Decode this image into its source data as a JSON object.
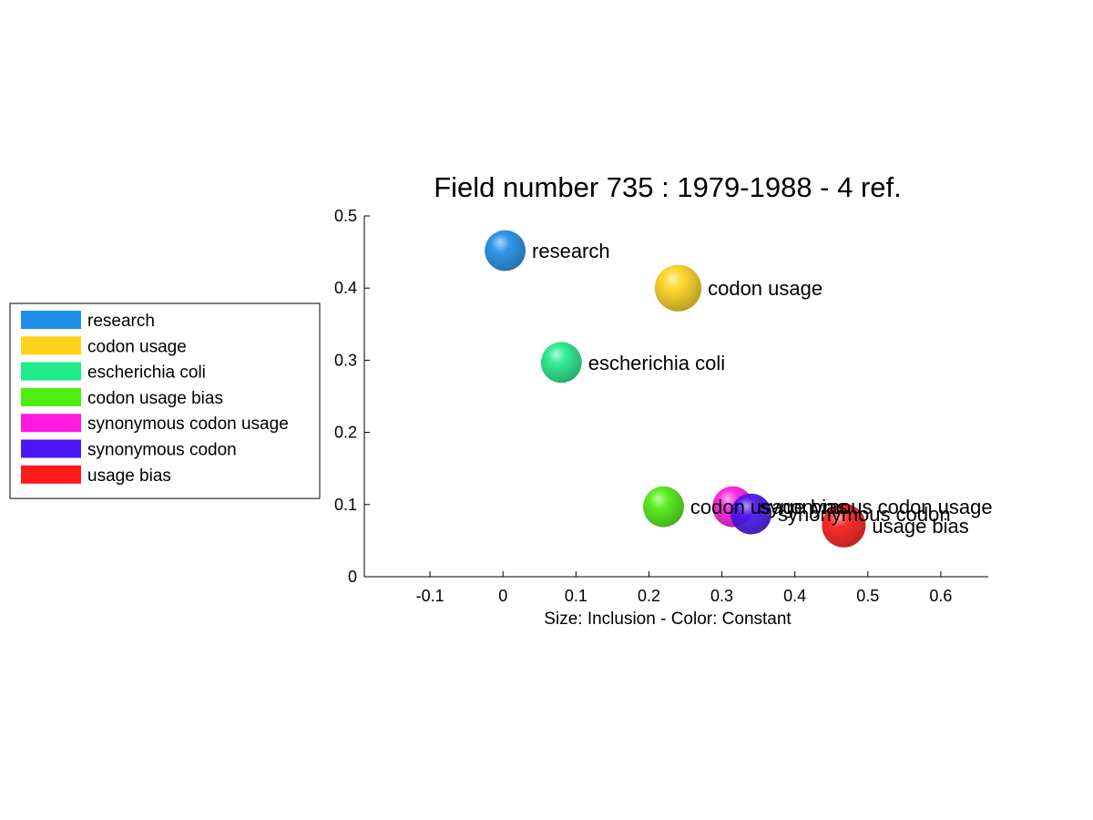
{
  "chart_data": {
    "type": "scatter",
    "title": "Field number 735 : 1979-1988  - 4 ref.",
    "xlabel": "Size: Inclusion - Color: Constant",
    "ylabel": "",
    "xlim": [
      -0.19,
      0.665
    ],
    "ylim": [
      0,
      0.5
    ],
    "xticks": [
      -0.1,
      0,
      0.1,
      0.2,
      0.3,
      0.4,
      0.5,
      0.6
    ],
    "xtick_labels": [
      "-0.1",
      "0",
      "0.1",
      "0.2",
      "0.3",
      "0.4",
      "0.5",
      "0.6"
    ],
    "yticks": [
      0,
      0.1,
      0.2,
      0.3,
      0.4,
      0.5
    ],
    "ytick_labels": [
      "0",
      "0.1",
      "0.2",
      "0.3",
      "0.4",
      "0.5"
    ],
    "grid": false,
    "legend_position": "left",
    "points": [
      {
        "label": "research",
        "x": 0.003,
        "y": 0.452,
        "size": 0.7,
        "color": "#1e8fe8"
      },
      {
        "label": "codon usage",
        "x": 0.24,
        "y": 0.4,
        "size": 0.8,
        "color": "#ffd21a"
      },
      {
        "label": "escherichia coli",
        "x": 0.08,
        "y": 0.297,
        "size": 0.7,
        "color": "#20eb8a"
      },
      {
        "label": "codon usage bias",
        "x": 0.22,
        "y": 0.097,
        "size": 0.7,
        "color": "#4ded10"
      },
      {
        "label": "synonymous codon usage",
        "x": 0.315,
        "y": 0.097,
        "size": 0.7,
        "color": "#ff1ae0"
      },
      {
        "label": "synonymous codon",
        "x": 0.34,
        "y": 0.087,
        "size": 0.7,
        "color": "#4b15f5"
      },
      {
        "label": "usage bias",
        "x": 0.467,
        "y": 0.071,
        "size": 0.75,
        "color": "#ff1a1a"
      }
    ]
  }
}
